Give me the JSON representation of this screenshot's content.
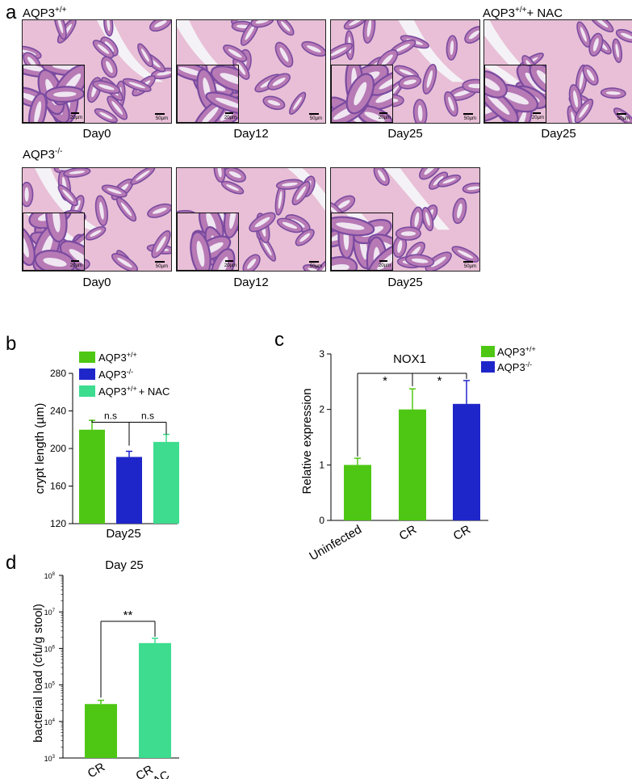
{
  "panel_a": {
    "letter": "a",
    "group_labels": {
      "wt": "AQP3",
      "wt_sup": "+/+",
      "ko": "AQP3",
      "ko_sup": "-/-",
      "nac": "AQP3",
      "nac_sup": "+/+",
      "nac_suffix": "+ NAC"
    },
    "row1_days": [
      "Day0",
      "Day12",
      "Day25",
      "Day25"
    ],
    "row2_days": [
      "Day0",
      "Day12",
      "Day25"
    ],
    "scalebar_inset": "20µm",
    "scalebar_main": "50µm",
    "tissue_colors": {
      "stain_base": "#e8bfd6",
      "stain_dark": "#7a4aa0",
      "stain_mid": "#b77ab5",
      "lumen": "#f4f2f6"
    }
  },
  "panel_b": {
    "letter": "b",
    "legend_base": "AQP3",
    "legend_sups": [
      "+/+",
      "-/-",
      "+/+"
    ],
    "legend_suffixes": [
      "",
      "",
      "+ NAC"
    ],
    "sig_labels": [
      "n.s",
      "n.s"
    ]
  },
  "panel_c": {
    "letter": "c",
    "legend_base": "AQP3",
    "legend_sups": [
      "+/+",
      "-/-"
    ],
    "sig_labels": [
      "*",
      "*"
    ]
  },
  "panel_d": {
    "letter": "d",
    "sig_label": "**",
    "ytick_base": "10",
    "ytick_exps": [
      "3",
      "4",
      "5",
      "6",
      "7",
      "8"
    ]
  },
  "chart_data": [
    {
      "id": "b",
      "type": "bar",
      "title": "",
      "xlabel": "Day25",
      "ylabel": "crypt length (µm)",
      "ylim": [
        120,
        280
      ],
      "yticks": [
        120,
        160,
        200,
        240,
        280
      ],
      "categories": [
        "AQP3+/+",
        "AQP3-/-",
        "AQP3+/+ NAC"
      ],
      "values": [
        220,
        191,
        207
      ],
      "errors": [
        10,
        6,
        8
      ],
      "colors": [
        "#4ec714",
        "#1f26c9",
        "#3ddc8f"
      ],
      "legend_position": "top",
      "grid": false
    },
    {
      "id": "c",
      "type": "bar",
      "title": "NOX1",
      "xlabel": "",
      "ylabel": "Relative expression",
      "ylim": [
        0,
        3
      ],
      "yticks": [
        0,
        1,
        2,
        3
      ],
      "categories": [
        "Uninfected",
        "CR",
        "CR"
      ],
      "values": [
        1.0,
        2.0,
        2.1
      ],
      "errors": [
        0.12,
        0.37,
        0.42
      ],
      "colors": [
        "#4ec714",
        "#4ec714",
        "#1f26c9"
      ],
      "legend_position": "top-right",
      "grid": false
    },
    {
      "id": "d",
      "type": "bar",
      "title": "Day 25",
      "xlabel": "",
      "ylabel": "bacterial load (cfu/g stool)",
      "yscale": "log",
      "ylim": [
        1000,
        100000000
      ],
      "categories": [
        "CR",
        "CR +NAC"
      ],
      "values": [
        30000,
        1400000
      ],
      "errors": [
        8000,
        500000
      ],
      "colors": [
        "#4ec714",
        "#3ddc8f"
      ],
      "grid": false
    }
  ]
}
